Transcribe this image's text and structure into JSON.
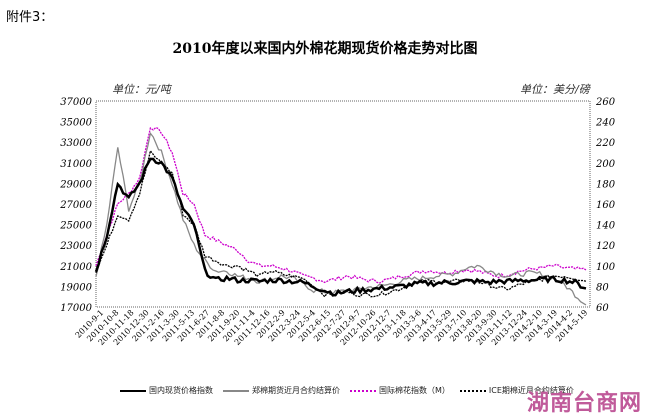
{
  "attachment_label": "附件3：",
  "watermark": "湖南台商网",
  "chart_data": {
    "type": "line",
    "title": "2010年度以来国内外棉花期现货价格走势对比图",
    "ylabel_left": "单位：元/吨",
    "ylabel_right": "单位：美分/磅",
    "ylim_left": [
      17000,
      37000
    ],
    "ylim_right": [
      60,
      260
    ],
    "yticks_left": [
      17000,
      19000,
      21000,
      23000,
      25000,
      27000,
      29000,
      31000,
      33000,
      35000,
      37000
    ],
    "yticks_right": [
      60,
      80,
      100,
      120,
      140,
      160,
      180,
      200,
      220,
      240,
      260
    ],
    "grid": false,
    "legend_position": "bottom",
    "x_tick_labels": [
      "2010-9-1",
      "2010-10-8",
      "2010-11-18",
      "2010-12-30",
      "2011-2-16",
      "2011-3-30",
      "2011-5-13",
      "2011-6-27",
      "2011-8-8",
      "2011-9-20",
      "2011-11-4",
      "2011-12-16",
      "2012-2-9",
      "2012-3-24",
      "2012-5-4",
      "2012-6-15",
      "2012-7-27",
      "2012-9-7",
      "2012-10-26",
      "2012-12-7",
      "2013-1-18",
      "2013-3-6",
      "2013-4-17",
      "2013-5-29",
      "2013-7-10",
      "2013-8-20",
      "2013-9-30",
      "2013-11-12",
      "2013-12-24",
      "2014-2-10",
      "2014-3-19",
      "2014-4-2",
      "2014-5-19"
    ],
    "x_months": [
      "2010-09",
      "2010-10",
      "2010-11",
      "2010-12",
      "2011-01",
      "2011-02",
      "2011-03",
      "2011-04",
      "2011-05",
      "2011-06",
      "2011-07",
      "2011-08",
      "2011-09",
      "2011-10",
      "2011-11",
      "2011-12",
      "2012-01",
      "2012-02",
      "2012-03",
      "2012-04",
      "2012-05",
      "2012-06",
      "2012-07",
      "2012-08",
      "2012-09",
      "2012-10",
      "2012-11",
      "2012-12",
      "2013-01",
      "2013-02",
      "2013-03",
      "2013-04",
      "2013-05",
      "2013-06",
      "2013-07",
      "2013-08",
      "2013-09",
      "2013-10",
      "2013-11",
      "2013-12",
      "2014-01",
      "2014-02",
      "2014-03",
      "2014-04",
      "2014-05",
      "2014-06"
    ],
    "series": [
      {
        "name": "国内现货价格指数",
        "axis": "left",
        "color": "#000000",
        "style": "solid-thick",
        "values": [
          20500,
          24000,
          29000,
          27500,
          29000,
          31500,
          31000,
          29500,
          26500,
          25000,
          20500,
          19600,
          19800,
          19600,
          19600,
          19500,
          19600,
          19600,
          19500,
          19400,
          19000,
          18600,
          18300,
          18500,
          18600,
          18700,
          18800,
          18900,
          19000,
          19200,
          19300,
          19300,
          19400,
          19400,
          19500,
          19500,
          19400,
          19500,
          19500,
          19600,
          19600,
          19700,
          19700,
          19600,
          19400,
          18800
        ]
      },
      {
        "name": "郑棉期货近月合约结算价",
        "axis": "left",
        "color": "#888888",
        "style": "solid",
        "values": [
          20000,
          25000,
          32500,
          26500,
          29000,
          34000,
          32000,
          29000,
          25500,
          23000,
          21500,
          20500,
          20500,
          20000,
          19800,
          19500,
          19700,
          20000,
          19800,
          19300,
          18600,
          18500,
          18400,
          18600,
          18700,
          18900,
          19000,
          19200,
          19500,
          19700,
          19800,
          20000,
          20100,
          20300,
          20800,
          21000,
          20600,
          20200,
          20000,
          20200,
          20300,
          20200,
          19800,
          19200,
          18200,
          17200
        ]
      },
      {
        "name": "国际棉花指数（M）",
        "axis": "right",
        "color": "#cc00cc",
        "style": "dotted",
        "values": [
          100,
          130,
          160,
          170,
          185,
          235,
          230,
          210,
          170,
          160,
          130,
          125,
          120,
          115,
          105,
          100,
          100,
          98,
          95,
          90,
          88,
          85,
          87,
          90,
          88,
          86,
          85,
          87,
          90,
          92,
          95,
          95,
          93,
          95,
          96,
          95,
          92,
          90,
          92,
          95,
          97,
          98,
          100,
          98,
          97,
          96
        ]
      },
      {
        "name": "ICE期棉近月合约结算价",
        "axis": "right",
        "color": "#000000",
        "style": "dotted",
        "values": [
          95,
          120,
          150,
          145,
          170,
          210,
          200,
          190,
          150,
          140,
          110,
          105,
          100,
          100,
          95,
          90,
          95,
          92,
          90,
          88,
          80,
          72,
          72,
          75,
          72,
          72,
          72,
          75,
          78,
          82,
          85,
          85,
          84,
          85,
          86,
          85,
          82,
          78,
          78,
          82,
          85,
          87,
          90,
          90,
          88,
          85
        ]
      }
    ]
  }
}
